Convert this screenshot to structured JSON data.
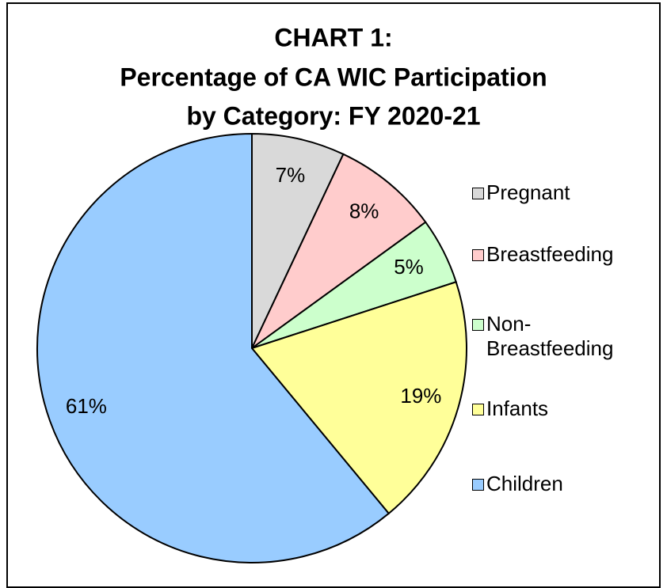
{
  "chart_data": {
    "type": "pie",
    "title": [
      "CHART 1:",
      "Percentage of CA WIC Participation",
      "by Category: FY 2020-21"
    ],
    "categories": [
      "Pregnant",
      "Breastfeeding",
      "Non-Breastfeeding",
      "Infants",
      "Children"
    ],
    "values": [
      7,
      8,
      5,
      19,
      61
    ],
    "value_labels": [
      "7%",
      "8%",
      "5%",
      "19%",
      "61%"
    ],
    "colors": [
      "#d9d9d9",
      "#ffcccc",
      "#ccffcc",
      "#ffff99",
      "#99ccff"
    ],
    "legend": "right"
  }
}
